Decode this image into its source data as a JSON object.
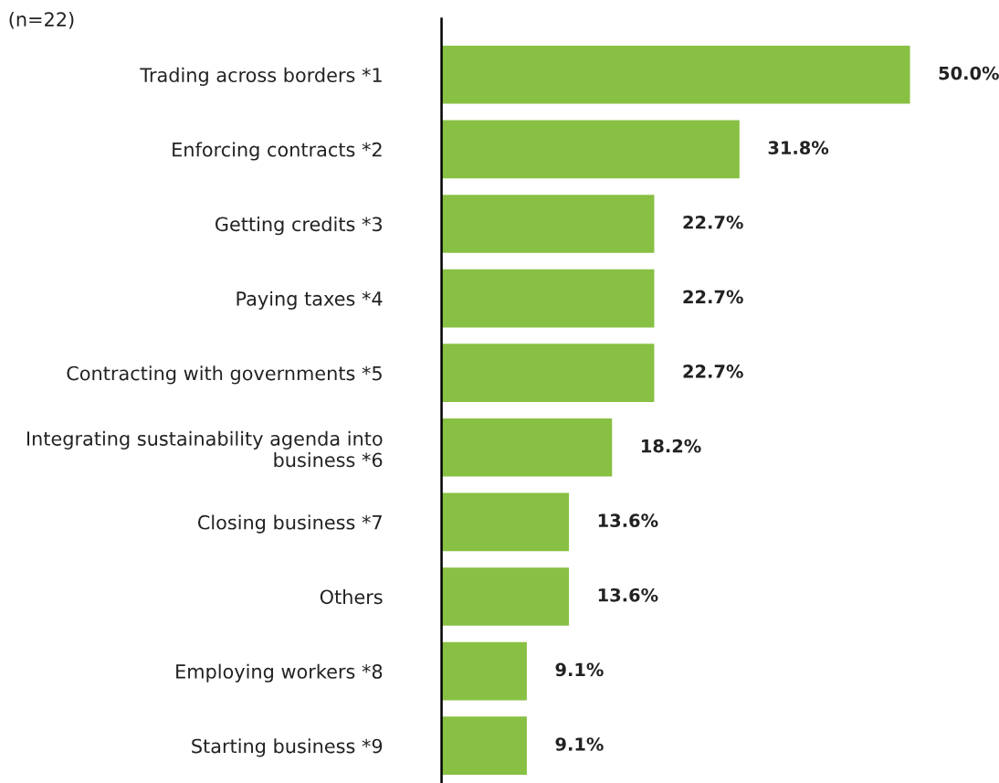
{
  "chart_data": {
    "type": "bar",
    "orientation": "horizontal",
    "categories": [
      "Trading across borders *1",
      "Enforcing contracts *2",
      "Getting credits *3",
      "Paying taxes *4",
      "Contracting with governments *5",
      "Integrating sustainability agenda into\nbusiness *6",
      "Closing business *7",
      "Others",
      "Employing workers *8",
      "Starting business *9"
    ],
    "values": [
      50.0,
      31.8,
      22.7,
      22.7,
      22.7,
      18.2,
      13.6,
      13.6,
      9.1,
      9.1
    ],
    "value_labels": [
      "50.0%",
      "31.8%",
      "22.7%",
      "22.7%",
      "22.7%",
      "18.2%",
      "13.6%",
      "13.6%",
      "9.1%",
      "9.1%"
    ],
    "color": "#88c043",
    "annotations": [
      "(n=22)"
    ],
    "grid": false,
    "legend": false
  }
}
